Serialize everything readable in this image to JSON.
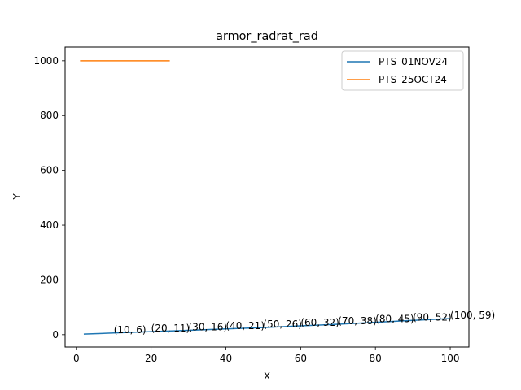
{
  "chart_data": {
    "type": "line",
    "title": "armor_radrat_rad",
    "xlabel": "X",
    "ylabel": "Y",
    "xlim": [
      -3,
      105
    ],
    "ylim": [
      -45,
      1050
    ],
    "xticks": [
      0,
      20,
      40,
      60,
      80,
      100
    ],
    "yticks": [
      0,
      200,
      400,
      600,
      800,
      1000
    ],
    "grid": false,
    "legend_position": "top-right",
    "series": [
      {
        "name": "PTS_01NOV24",
        "color": "#1f77b4",
        "points": [
          [
            2,
            2
          ],
          [
            10,
            6
          ],
          [
            20,
            11
          ],
          [
            30,
            16
          ],
          [
            40,
            21
          ],
          [
            50,
            26
          ],
          [
            60,
            32
          ],
          [
            70,
            38
          ],
          [
            80,
            45
          ],
          [
            90,
            52
          ],
          [
            100,
            59
          ]
        ]
      },
      {
        "name": "PTS_25OCT24",
        "color": "#ff7f0e",
        "points": [
          [
            1,
            1000
          ],
          [
            25,
            1000
          ]
        ]
      }
    ],
    "annotations": [
      {
        "text": "(10, 6)",
        "x": 10,
        "y": 6
      },
      {
        "text": "(20, 11)",
        "x": 20,
        "y": 11
      },
      {
        "text": "(30, 16)",
        "x": 30,
        "y": 16
      },
      {
        "text": "(40, 21)",
        "x": 40,
        "y": 21
      },
      {
        "text": "(50, 26)",
        "x": 50,
        "y": 26
      },
      {
        "text": "(60, 32)",
        "x": 60,
        "y": 32
      },
      {
        "text": "(70, 38)",
        "x": 70,
        "y": 38
      },
      {
        "text": "(80, 45)",
        "x": 80,
        "y": 45
      },
      {
        "text": "(90, 52)",
        "x": 90,
        "y": 52
      },
      {
        "text": "(100, 59)",
        "x": 100,
        "y": 59
      }
    ]
  }
}
